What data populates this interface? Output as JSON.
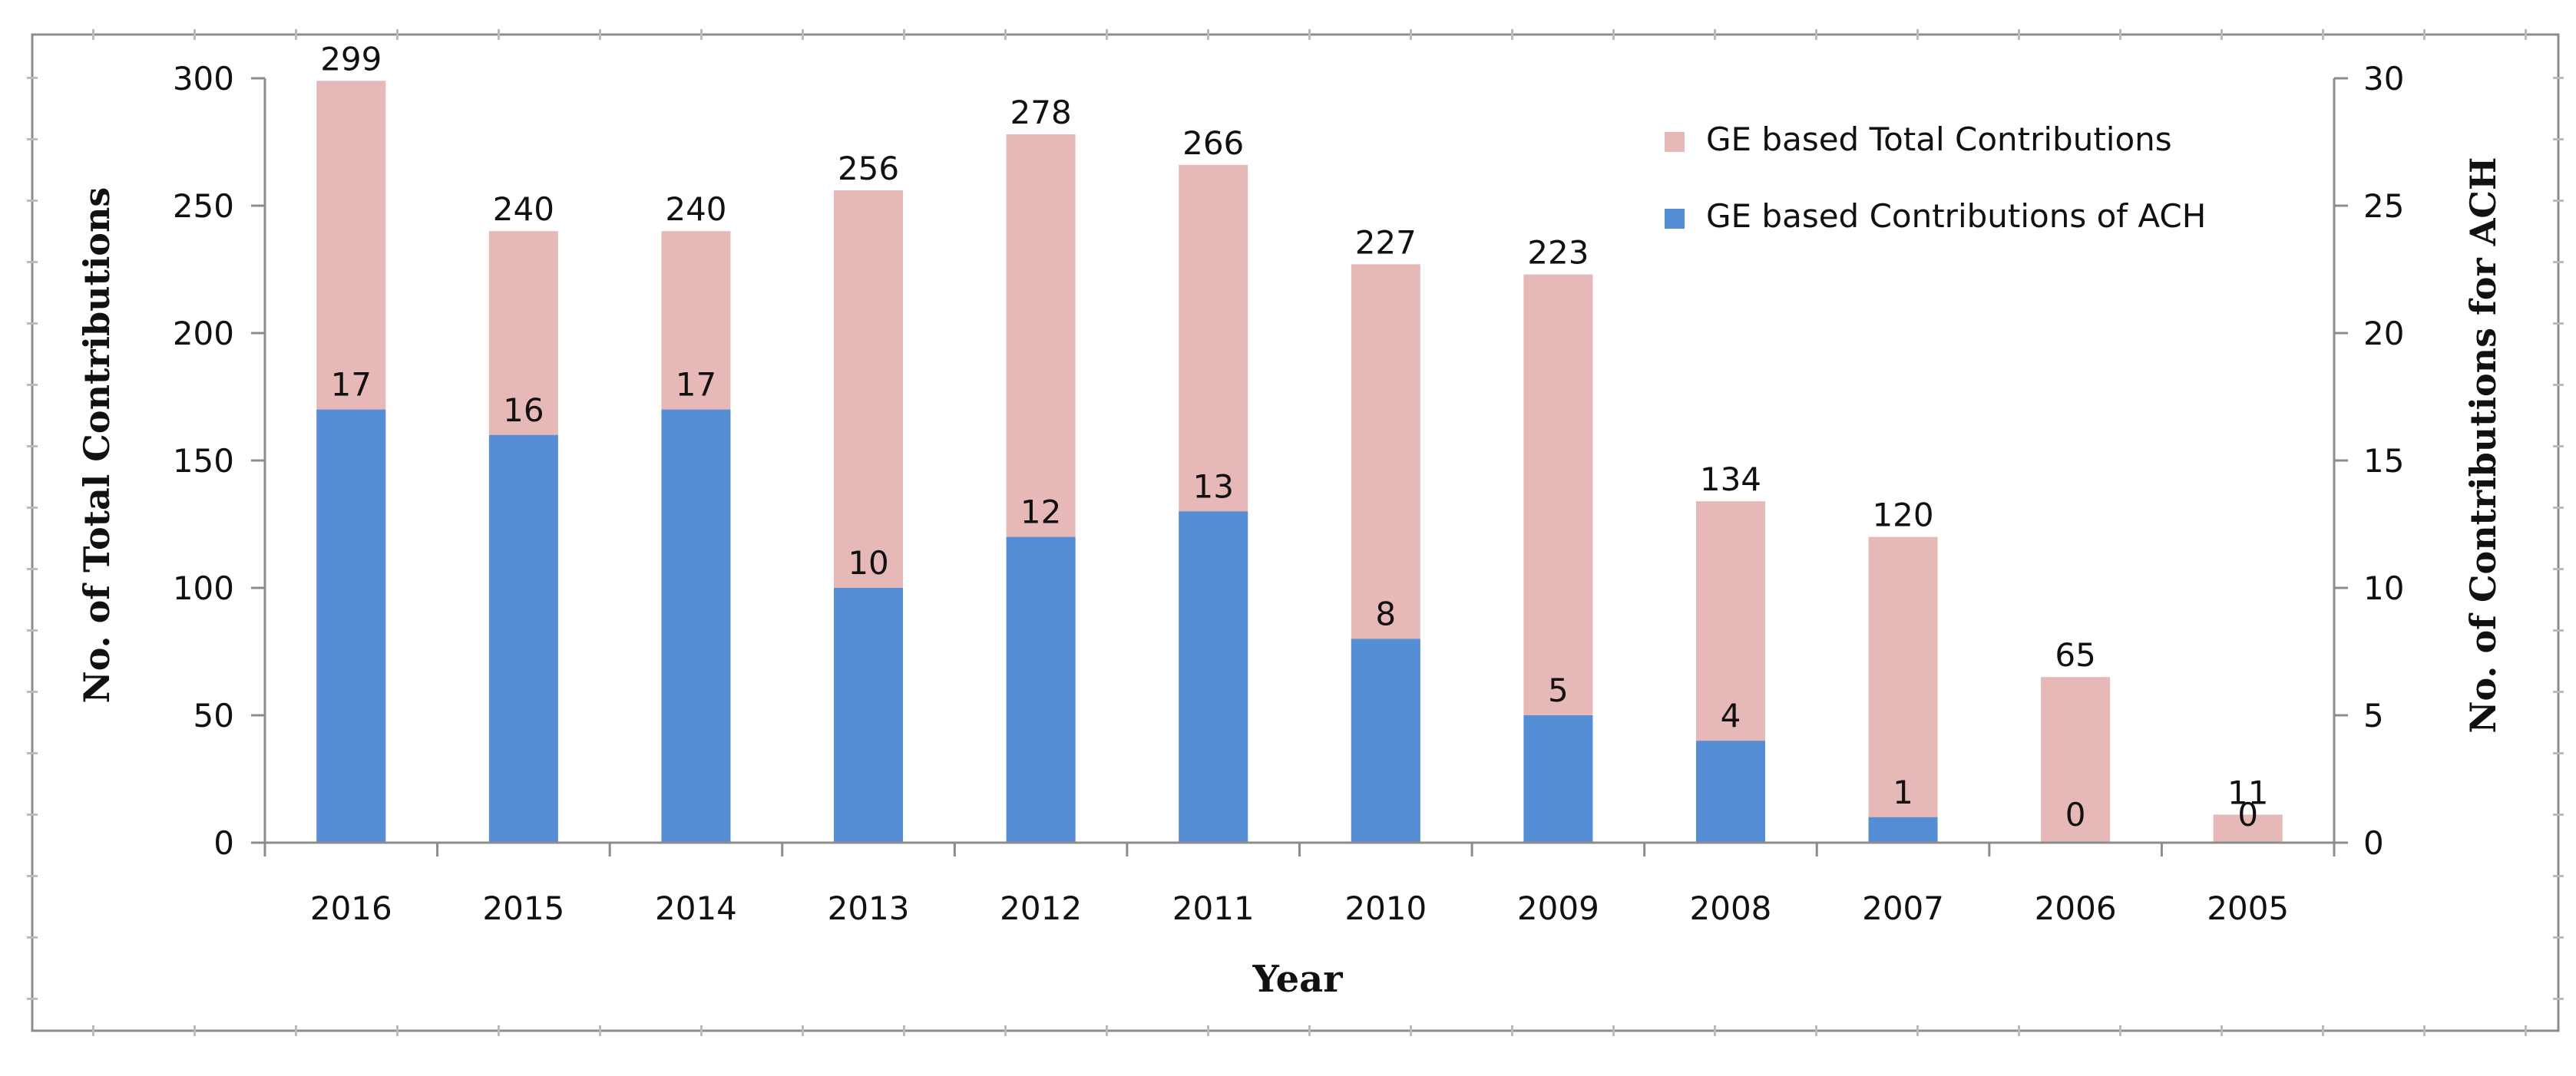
{
  "chart_data": {
    "type": "bar",
    "title": "",
    "categories": [
      "2016",
      "2015",
      "2014",
      "2013",
      "2012",
      "2011",
      "2010",
      "2009",
      "2008",
      "2007",
      "2006",
      "2005"
    ],
    "series": [
      {
        "name": "GE based Total  Contributions",
        "values": [
          299,
          240,
          240,
          256,
          278,
          266,
          227,
          223,
          134,
          120,
          65,
          11
        ],
        "axis": "left",
        "color": "#e6b8b7"
      },
      {
        "name": "GE based Contributions of ACH",
        "values": [
          17,
          16,
          17,
          10,
          12,
          13,
          8,
          5,
          4,
          1,
          0,
          0
        ],
        "axis": "right",
        "color": "#558ed5"
      }
    ],
    "xlabel": "Year",
    "ylabel": "No. of Total Contributions",
    "y2label": "No. of Contributions  for ACH",
    "ylim": [
      0,
      300
    ],
    "y2lim": [
      0,
      30
    ],
    "yticks": [
      0,
      50,
      100,
      150,
      200,
      250,
      300
    ],
    "y2ticks": [
      0,
      5,
      10,
      15,
      20,
      25,
      30
    ],
    "legend_position": "top-right",
    "grid": false
  }
}
